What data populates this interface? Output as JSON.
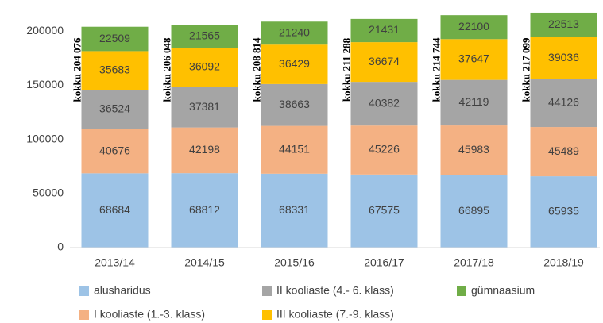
{
  "chart_data": {
    "type": "stacked_bar",
    "categories": [
      "2013/14",
      "2014/15",
      "2015/16",
      "2016/17",
      "2017/18",
      "2018/19"
    ],
    "series": [
      {
        "name": "alusharidus",
        "color": "#9dc3e6",
        "values": [
          68684,
          68812,
          68331,
          67575,
          66895,
          65935
        ]
      },
      {
        "name": "I kooliaste (1.-3. klass)",
        "color": "#f4b183",
        "values": [
          40676,
          42198,
          44151,
          45226,
          45983,
          45489
        ]
      },
      {
        "name": "II kooliaste (4.- 6. klass)",
        "color": "#a5a5a5",
        "values": [
          36524,
          37381,
          38663,
          40382,
          42119,
          44126
        ]
      },
      {
        "name": "III kooliaste (7.-9. klass)",
        "color": "#ffc000",
        "values": [
          35683,
          36092,
          36429,
          36674,
          37647,
          39036
        ]
      },
      {
        "name": "gümnaasium",
        "color": "#70ad47",
        "values": [
          22509,
          21565,
          21240,
          21431,
          22100,
          22513
        ]
      }
    ],
    "annotations": [
      "kokku 204 076",
      "kokku 206 048",
      "kokku 208 814",
      "kokku 211 288",
      "kokku 214 744",
      "kokku 217 099"
    ],
    "ylim": [
      0,
      220000
    ],
    "yticks": [
      0,
      50000,
      100000,
      150000,
      200000
    ],
    "grid": false,
    "legend": "bottom"
  }
}
